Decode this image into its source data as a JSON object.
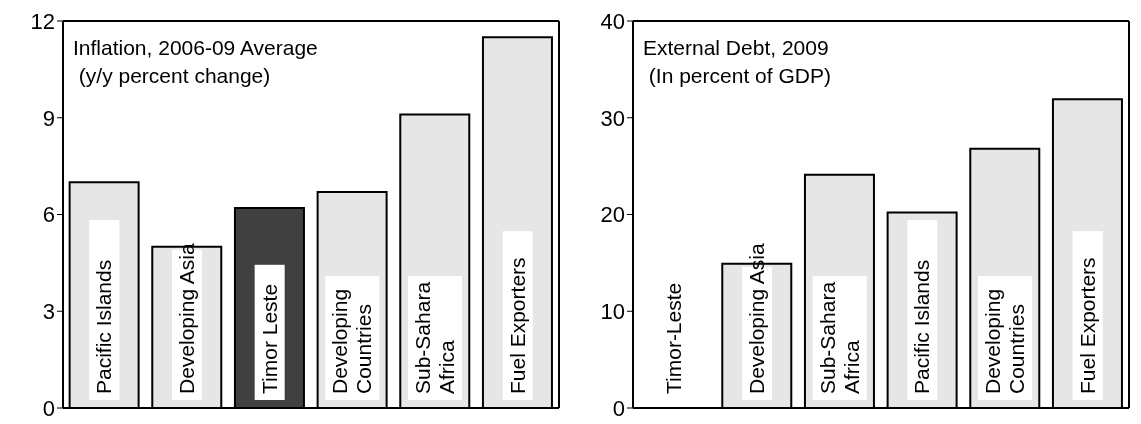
{
  "chart_data": [
    {
      "type": "bar",
      "title": "Inflation, 2006-09  Average",
      "subtitle": "(y/y percent change)",
      "categories": [
        "Pacific Islands",
        "Developing Asia",
        "Timor Leste",
        "Developing Countries",
        "Sub-Sahara Africa",
        "Fuel Exporters"
      ],
      "values": [
        7.0,
        5.0,
        6.2,
        6.7,
        9.1,
        11.5
      ],
      "colors": [
        "#e6e6e6",
        "#e6e6e6",
        "#404040",
        "#e6e6e6",
        "#e6e6e6",
        "#e6e6e6"
      ],
      "ylim": [
        0,
        12
      ],
      "yticks": [
        0,
        3,
        6,
        9,
        12
      ],
      "grid": false,
      "legend": false
    },
    {
      "type": "bar",
      "title": "External Debt, 2009",
      "subtitle": "(In percent of GDP)",
      "categories": [
        "Timor-Leste",
        "Developing Asia",
        "Sub-Sahara Africa",
        "Pacific Islands",
        "Developing Countries",
        "Fuel Exporters"
      ],
      "values": [
        0,
        14.9,
        24.1,
        20.2,
        26.8,
        31.9
      ],
      "colors": [
        "#e6e6e6",
        "#e6e6e6",
        "#e6e6e6",
        "#e6e6e6",
        "#e6e6e6",
        "#e6e6e6"
      ],
      "ylim": [
        0,
        40
      ],
      "yticks": [
        0,
        10,
        20,
        30,
        40
      ],
      "grid": false,
      "legend": false
    }
  ]
}
